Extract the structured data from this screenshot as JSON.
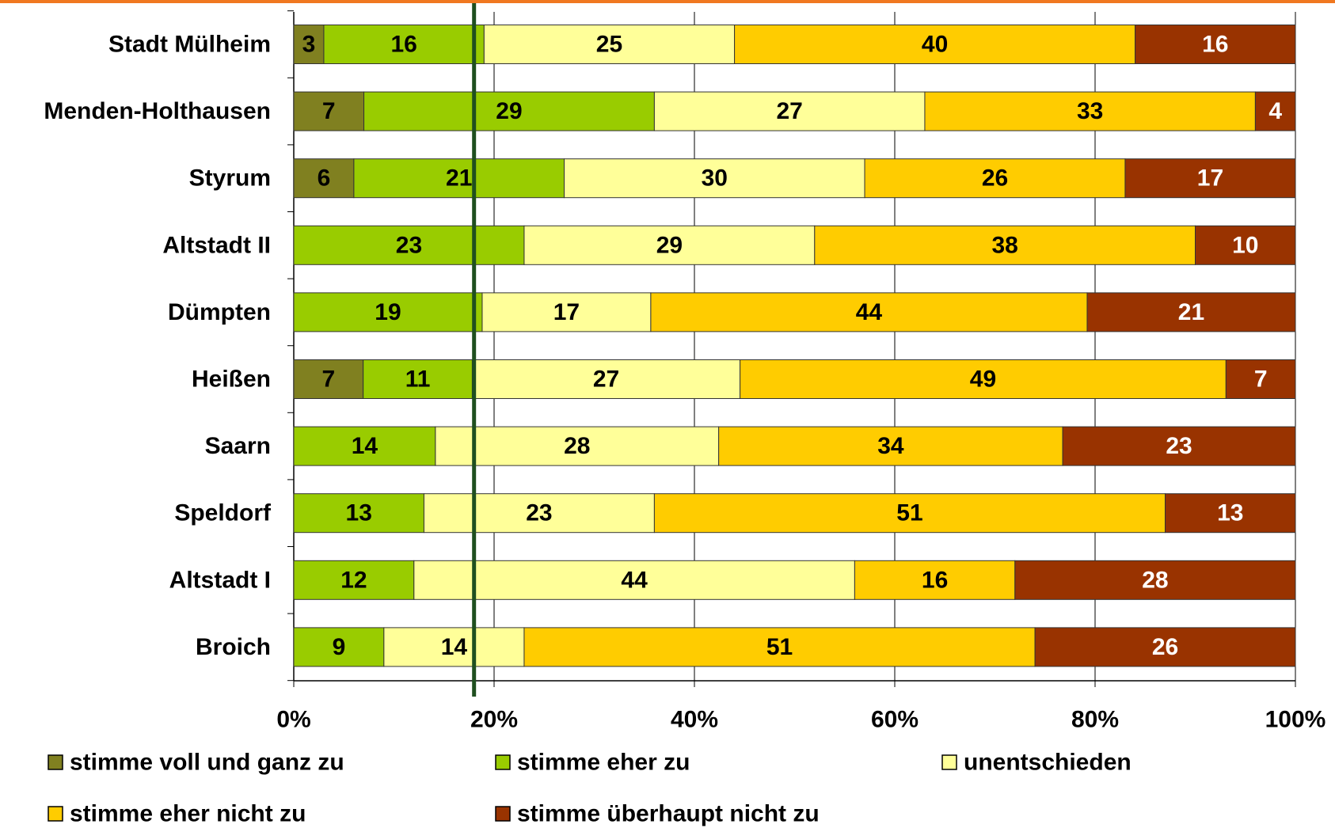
{
  "chart_data": {
    "type": "stacked_bar_horizontal_percent",
    "categories": [
      "Stadt Mülheim",
      "Menden-Holthausen",
      "Styrum",
      "Altstadt II",
      "Dümpten",
      "Heißen",
      "Saarn",
      "Speldorf",
      "Altstadt I",
      "Broich"
    ],
    "series": [
      {
        "name": "stimme voll und ganz zu",
        "color": "#808020",
        "values": [
          3,
          7,
          6,
          null,
          null,
          7,
          null,
          null,
          null,
          null
        ]
      },
      {
        "name": "stimme eher zu",
        "color": "#99cc00",
        "values": [
          16,
          29,
          21,
          23,
          19,
          11,
          14,
          13,
          12,
          9
        ]
      },
      {
        "name": "unentschieden",
        "color": "#ffff99",
        "values": [
          25,
          27,
          30,
          29,
          17,
          27,
          28,
          23,
          44,
          14
        ]
      },
      {
        "name": "stimme eher nicht zu",
        "color": "#ffcc00",
        "values": [
          40,
          33,
          26,
          38,
          44,
          49,
          34,
          51,
          16,
          51
        ]
      },
      {
        "name": "stimme überhaupt nicht zu",
        "color": "#993300",
        "values": [
          16,
          4,
          17,
          10,
          21,
          7,
          23,
          13,
          28,
          26
        ]
      }
    ],
    "xlim": [
      0,
      100
    ],
    "xticks": [
      {
        "value": 0,
        "label": "0%"
      },
      {
        "value": 20,
        "label": "20%"
      },
      {
        "value": 40,
        "label": "40%"
      },
      {
        "value": 60,
        "label": "60%"
      },
      {
        "value": 80,
        "label": "80%"
      },
      {
        "value": 100,
        "label": "100%"
      }
    ],
    "reference_line": {
      "value": 18,
      "color": "#1f4f1f"
    },
    "grid": true,
    "legend": "bottom"
  }
}
